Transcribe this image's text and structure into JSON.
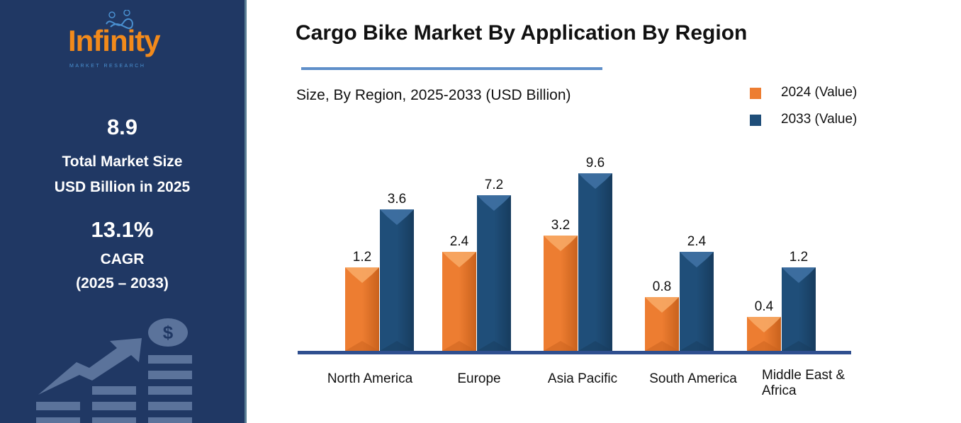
{
  "logo": {
    "name": "Infinity",
    "tagline": "MARKET RESEARCH"
  },
  "sidebar": {
    "market_size": "8.9",
    "market_size_label_1": "Total Market Size",
    "market_size_label_2": "USD Billion in 2025",
    "cagr": "13.1%",
    "cagr_label": "CAGR",
    "cagr_period": "(2025 – 2033)",
    "illustration_icon": "growth-chart-dollar-icon"
  },
  "colors": {
    "sidebar": "#203864",
    "series_2024": "#ed7d31",
    "series_2033": "#1f4e79",
    "axis": "#2f4f8f"
  },
  "chart_data": {
    "type": "bar",
    "title": "Cargo Bike Market By Application By Region",
    "subtitle": "Size, By Region, 2025-2033 (USD Billion)",
    "categories": [
      "North America",
      "Europe",
      "Asia Pacific",
      "South America",
      "Middle East & Africa"
    ],
    "series": [
      {
        "name": "2024 (Value)",
        "values": [
          1.2,
          2.4,
          3.2,
          0.8,
          0.4
        ]
      },
      {
        "name": "2033 (Value)",
        "values": [
          3.6,
          7.2,
          9.6,
          2.4,
          1.2
        ]
      }
    ],
    "legend": "top-right",
    "grid": false,
    "data_labels": true
  }
}
